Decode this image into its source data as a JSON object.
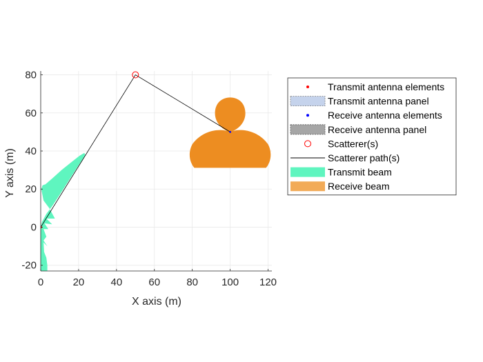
{
  "chart_data": {
    "type": "scatter",
    "xlabel": "X axis (m)",
    "ylabel": "Y axis (m)",
    "xlim": [
      0,
      122
    ],
    "ylim": [
      -23,
      82
    ],
    "xticks": [
      0,
      20,
      40,
      60,
      80,
      100,
      120
    ],
    "yticks": [
      -20,
      0,
      20,
      40,
      60,
      80
    ],
    "grid": true,
    "legend_position": "outside-right",
    "legend": [
      {
        "label": "Transmit antenna elements",
        "kind": "dot",
        "color": "#ff0000"
      },
      {
        "label": "Transmit antenna panel",
        "kind": "patch",
        "color": "#c5d3ec",
        "edge": "#7f7f7f"
      },
      {
        "label": "Receive antenna elements",
        "kind": "dot",
        "color": "#0000ff"
      },
      {
        "label": "Receive antenna panel",
        "kind": "patch",
        "color": "#a6a6a6",
        "edge": "#595959"
      },
      {
        "label": "Scatterer(s)",
        "kind": "circle",
        "color": "#ff0000"
      },
      {
        "label": "Scatterer path(s)",
        "kind": "line",
        "color": "#000000"
      },
      {
        "label": "Transmit beam",
        "kind": "patch",
        "color": "#5ff5bf"
      },
      {
        "label": "Receive beam",
        "kind": "patch",
        "color": "#f2ab58"
      }
    ],
    "transmitter": {
      "x": 0,
      "y": 0
    },
    "receiver": {
      "x": 100,
      "y": 50
    },
    "scatterers": [
      {
        "x": 50,
        "y": 80
      }
    ],
    "scatterer_path": [
      [
        0,
        0
      ],
      [
        50,
        80
      ],
      [
        100,
        50
      ]
    ],
    "transmit_beam": {
      "origin": [
        0,
        0
      ],
      "color": "#5ff5bf"
    },
    "receive_beam": {
      "origin": [
        100,
        50
      ],
      "color": "#f2ab58"
    }
  }
}
